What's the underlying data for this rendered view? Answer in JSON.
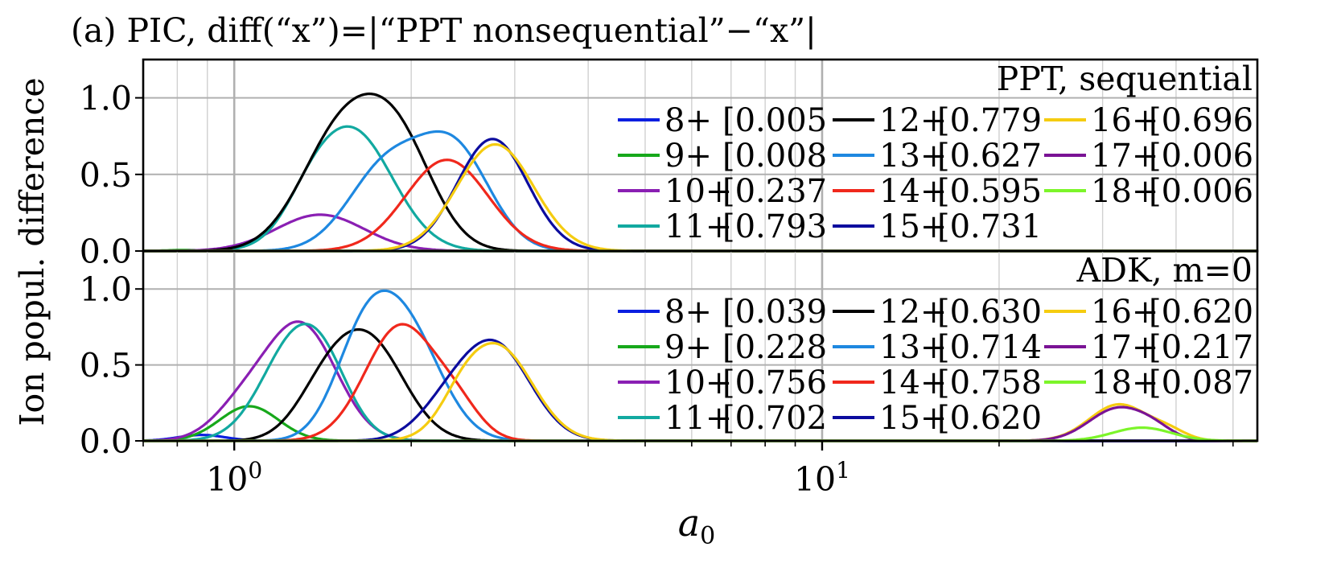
{
  "chart_data": {
    "title": "(a) PIC, diff(“x”)=|“PPT nonsequential”−“x”|",
    "ylabel": "Ion popul. difference",
    "xlabel": "a",
    "xlabel_sub": "0",
    "xscale": "log",
    "xlim": [
      0.7,
      55
    ],
    "xticks": [
      {
        "base": "10",
        "exp": "0",
        "value": 1
      },
      {
        "base": "10",
        "exp": "1",
        "value": 10
      }
    ],
    "grid": true,
    "panels": [
      {
        "type": "line",
        "label": "PPT, sequential",
        "ylim": [
          0,
          1.25
        ],
        "yticks": [
          "0.0",
          "0.5",
          "1.0"
        ],
        "series": [
          {
            "name": "8+",
            "note": "[0.005",
            "color": "#0a1fe0",
            "peaks": []
          },
          {
            "name": "9+",
            "note": "[0.008",
            "color": "#17a81b",
            "peaks": [
              [
                0.82,
                0.006,
                0.03
              ]
            ]
          },
          {
            "name": "10+",
            "note": "[0.237",
            "color": "#8a1fb3",
            "peaks": [
              [
                1.4,
                0.237,
                0.075
              ]
            ]
          },
          {
            "name": "11+",
            "note": "[0.793",
            "color": "#12a9a0",
            "peaks": [
              [
                1.58,
                0.793,
                0.07
              ],
              [
                1.33,
                0.1,
                0.04
              ]
            ]
          },
          {
            "name": "12+",
            "note": "[0.779",
            "color": "#000000",
            "peaks": [
              [
                1.53,
                0.779,
                0.07
              ],
              [
                1.92,
                0.585,
                0.06
              ]
            ]
          },
          {
            "name": "13+",
            "note": "[0.627",
            "color": "#1e88e0",
            "peaks": [
              [
                1.82,
                0.55,
                0.065
              ],
              [
                2.38,
                0.627,
                0.06
              ]
            ]
          },
          {
            "name": "14+",
            "note": "[0.595",
            "color": "#f0281c",
            "peaks": [
              [
                2.3,
                0.595,
                0.07
              ]
            ]
          },
          {
            "name": "15+",
            "note": "[0.731",
            "color": "#0c0c9e",
            "peaks": [
              [
                2.75,
                0.731,
                0.06
              ]
            ]
          },
          {
            "name": "16+",
            "note": "[0.696",
            "color": "#f5cc10",
            "peaks": [
              [
                2.78,
                0.696,
                0.065
              ]
            ]
          },
          {
            "name": "17+",
            "note": "[0.006",
            "color": "#7a1395",
            "peaks": []
          },
          {
            "name": "18+",
            "note": "[0.006",
            "color": "#7cf52a",
            "peaks": []
          }
        ]
      },
      {
        "type": "line",
        "label": "ADK, m=0",
        "ylim": [
          0,
          1.25
        ],
        "yticks": [
          "0.0",
          "0.5",
          "1.0"
        ],
        "series": [
          {
            "name": "8+",
            "note": "[0.039",
            "color": "#0a1fe0",
            "peaks": [
              [
                0.88,
                0.039,
                0.04
              ]
            ]
          },
          {
            "name": "9+",
            "note": "[0.228",
            "color": "#17a81b",
            "peaks": [
              [
                1.06,
                0.228,
                0.05
              ]
            ]
          },
          {
            "name": "10+",
            "note": "[0.756",
            "color": "#8a1fb3",
            "peaks": [
              [
                1.03,
                0.2,
                0.05
              ],
              [
                1.3,
                0.756,
                0.06
              ]
            ]
          },
          {
            "name": "11+",
            "note": "[0.702",
            "color": "#12a9a0",
            "peaks": [
              [
                1.29,
                0.702,
                0.06
              ],
              [
                1.45,
                0.13,
                0.04
              ]
            ]
          },
          {
            "name": "12+",
            "note": "[0.630",
            "color": "#000000",
            "peaks": [
              [
                1.42,
                0.27,
                0.05
              ],
              [
                1.7,
                0.63,
                0.06
              ]
            ]
          },
          {
            "name": "13+",
            "note": "[0.714",
            "color": "#1e88e0",
            "peaks": [
              [
                1.65,
                0.53,
                0.05
              ],
              [
                1.96,
                0.714,
                0.06
              ]
            ]
          },
          {
            "name": "14+",
            "note": "[0.758",
            "color": "#f0281c",
            "peaks": [
              [
                1.92,
                0.758,
                0.06
              ],
              [
                2.4,
                0.17,
                0.04
              ]
            ]
          },
          {
            "name": "15+",
            "note": "[0.620",
            "color": "#0c0c9e",
            "peaks": [
              [
                2.28,
                0.17,
                0.05
              ],
              [
                2.78,
                0.62,
                0.06
              ]
            ]
          },
          {
            "name": "16+",
            "note": "[0.620",
            "color": "#f5cc10",
            "peaks": [
              [
                2.8,
                0.62,
                0.06
              ],
              [
                2.42,
                0.1,
                0.035
              ],
              [
                32,
                0.24,
                0.05
              ],
              [
                39,
                0.05,
                0.03
              ]
            ]
          },
          {
            "name": "17+",
            "note": "[0.217",
            "color": "#7a1395",
            "peaks": [
              [
                32,
                0.217,
                0.05
              ],
              [
                37,
                0.04,
                0.03
              ]
            ]
          },
          {
            "name": "18+",
            "note": "[0.087",
            "color": "#7cf52a",
            "peaks": [
              [
                35,
                0.087,
                0.05
              ]
            ]
          }
        ]
      }
    ]
  }
}
